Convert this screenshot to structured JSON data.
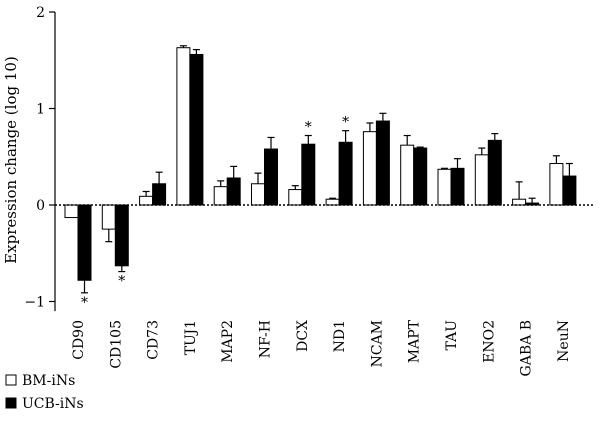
{
  "chart_data": {
    "type": "bar",
    "title": "",
    "xlabel": "",
    "ylabel": "Expression change (log 10)",
    "ylim": [
      -1.1,
      2
    ],
    "yticks": [
      -1,
      0,
      1,
      2
    ],
    "grid": false,
    "legend_position": "bottom-left",
    "categories": [
      "CD90",
      "CD105",
      "CD73",
      "TUJ1",
      "MAP2",
      "NF-H",
      "DCX",
      "ND1",
      "NCAM",
      "MAPT",
      "TAU",
      "ENO2",
      "GABA B",
      "NeuN"
    ],
    "series": [
      {
        "name": "BM-iNs",
        "color": "#ffffff",
        "values": [
          -0.13,
          -0.25,
          0.09,
          1.63,
          0.19,
          0.22,
          0.16,
          0.06,
          0.76,
          0.62,
          0.37,
          0.52,
          0.06,
          0.43
        ],
        "errors": [
          0.0,
          0.13,
          0.05,
          0.02,
          0.06,
          0.11,
          0.04,
          0.01,
          0.09,
          0.1,
          0.01,
          0.07,
          0.18,
          0.08
        ]
      },
      {
        "name": "UCB-iNs",
        "color": "#000000",
        "values": [
          -0.78,
          -0.63,
          0.22,
          1.56,
          0.28,
          0.58,
          0.63,
          0.65,
          0.87,
          0.59,
          0.38,
          0.67,
          0.02,
          0.3
        ],
        "errors": [
          0.13,
          0.06,
          0.12,
          0.05,
          0.12,
          0.12,
          0.09,
          0.12,
          0.08,
          0.01,
          0.1,
          0.07,
          0.05,
          0.13
        ]
      }
    ],
    "annotations": [
      {
        "category": "CD90",
        "series": "UCB-iNs",
        "text": "*",
        "position": "below"
      },
      {
        "category": "CD105",
        "series": "UCB-iNs",
        "text": "*",
        "position": "below"
      },
      {
        "category": "DCX",
        "series": "UCB-iNs",
        "text": "*",
        "position": "above"
      },
      {
        "category": "ND1",
        "series": "UCB-iNs",
        "text": "*",
        "position": "above"
      }
    ]
  }
}
